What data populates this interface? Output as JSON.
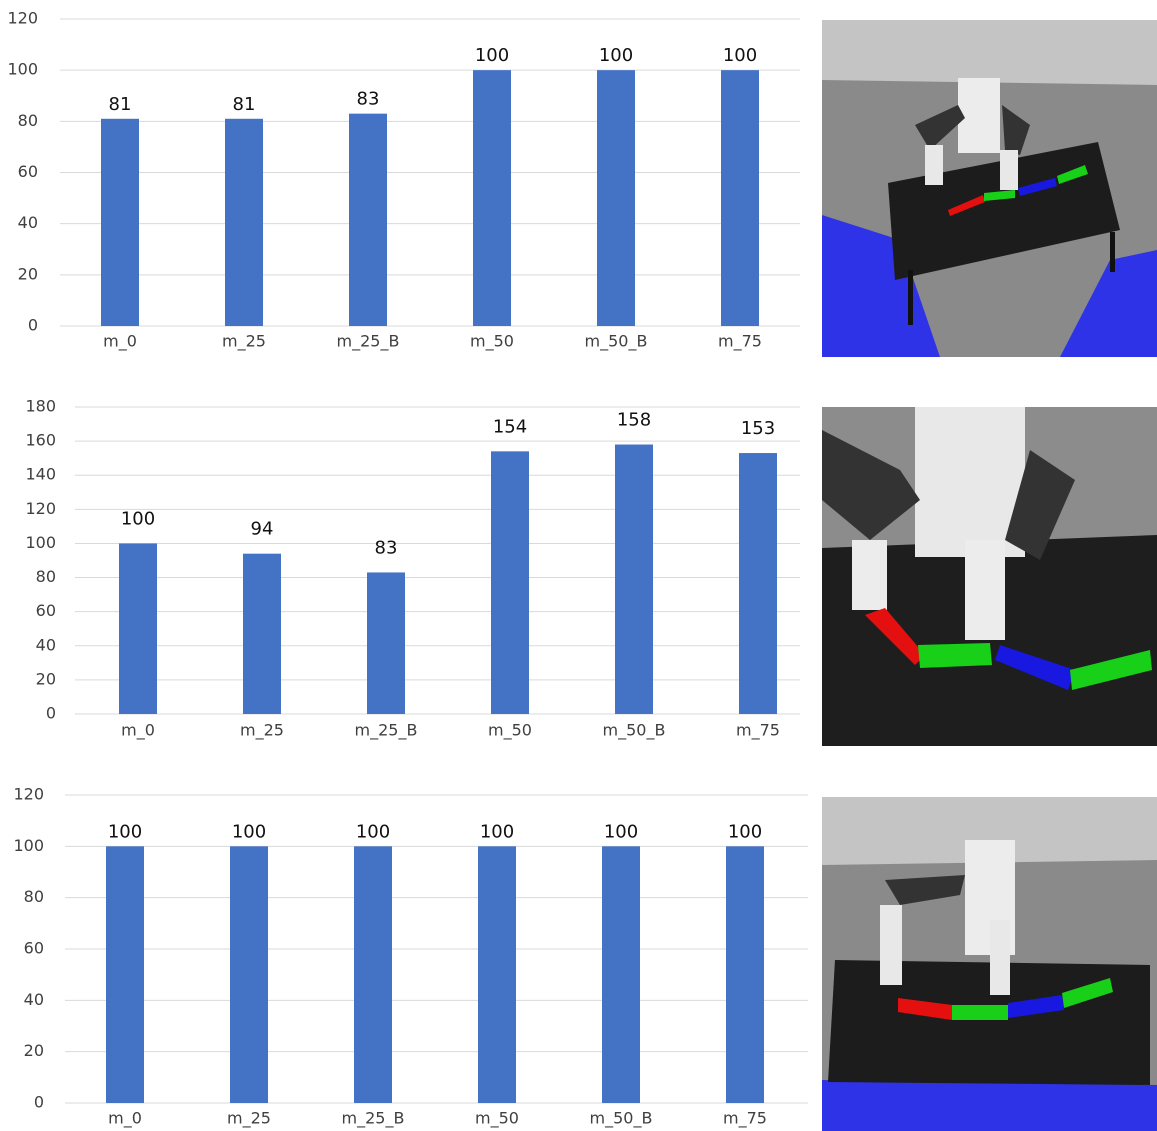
{
  "chart_data": [
    {
      "type": "bar",
      "categories": [
        "m_0",
        "m_25",
        "m_25_B",
        "m_50",
        "m_50_B",
        "m_75"
      ],
      "values": [
        81,
        81,
        83,
        100,
        100,
        100
      ],
      "color": "#4472c4",
      "ylim": [
        0,
        120
      ],
      "yticks": [
        0,
        20,
        40,
        60,
        80,
        100,
        120
      ],
      "grid": true
    },
    {
      "type": "bar",
      "categories": [
        "m_0",
        "m_25",
        "m_25_B",
        "m_50",
        "m_50_B",
        "m_75"
      ],
      "values": [
        100,
        94,
        83,
        154,
        158,
        153
      ],
      "color": "#4472c4",
      "ylim": [
        0,
        180
      ],
      "yticks": [
        0,
        20,
        40,
        60,
        80,
        100,
        120,
        140,
        160,
        180
      ],
      "grid": true
    },
    {
      "type": "bar",
      "categories": [
        "m_0",
        "m_25",
        "m_25_B",
        "m_50",
        "m_50_B",
        "m_75"
      ],
      "values": [
        100,
        100,
        100,
        100,
        100,
        100
      ],
      "color": "#4472c4",
      "ylim": [
        0,
        120
      ],
      "yticks": [
        0,
        20,
        40,
        60,
        80,
        100,
        120
      ],
      "grid": true
    }
  ]
}
